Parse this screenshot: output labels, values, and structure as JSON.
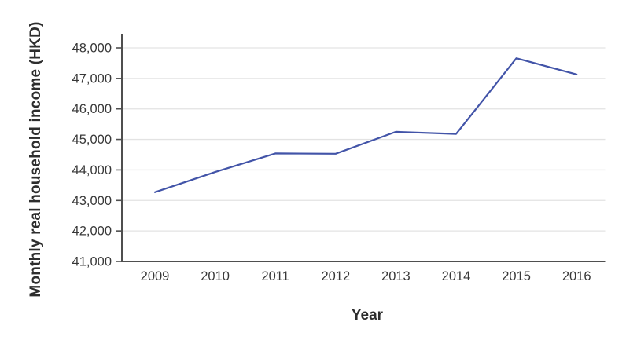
{
  "figure": {
    "background": "#ffffff"
  },
  "chart_data": {
    "type": "line",
    "title": "",
    "xlabel": "Year",
    "ylabel": "Monthly real household income (HKD)",
    "x": [
      "2009",
      "2010",
      "2011",
      "2012",
      "2013",
      "2014",
      "2015",
      "2016"
    ],
    "series": [
      {
        "name": "Monthly real household income (HKD)",
        "values": [
          43270,
          43930,
          44540,
          44530,
          45250,
          45180,
          47660,
          47130
        ]
      }
    ],
    "ylim": [
      41000,
      48000
    ],
    "yticks": [
      41000,
      42000,
      43000,
      44000,
      45000,
      46000,
      47000,
      48000
    ],
    "ytick_labels": [
      "41,000",
      "42,000",
      "43,000",
      "44,000",
      "45,000",
      "46,000",
      "47,000",
      "48,000"
    ],
    "grid": "horizontal",
    "legend": "none",
    "line_color": "#4254a8",
    "gridline_color": "#e3e3e3",
    "axis_color": "#4f4f4f",
    "tick_text_color": "#383838"
  }
}
